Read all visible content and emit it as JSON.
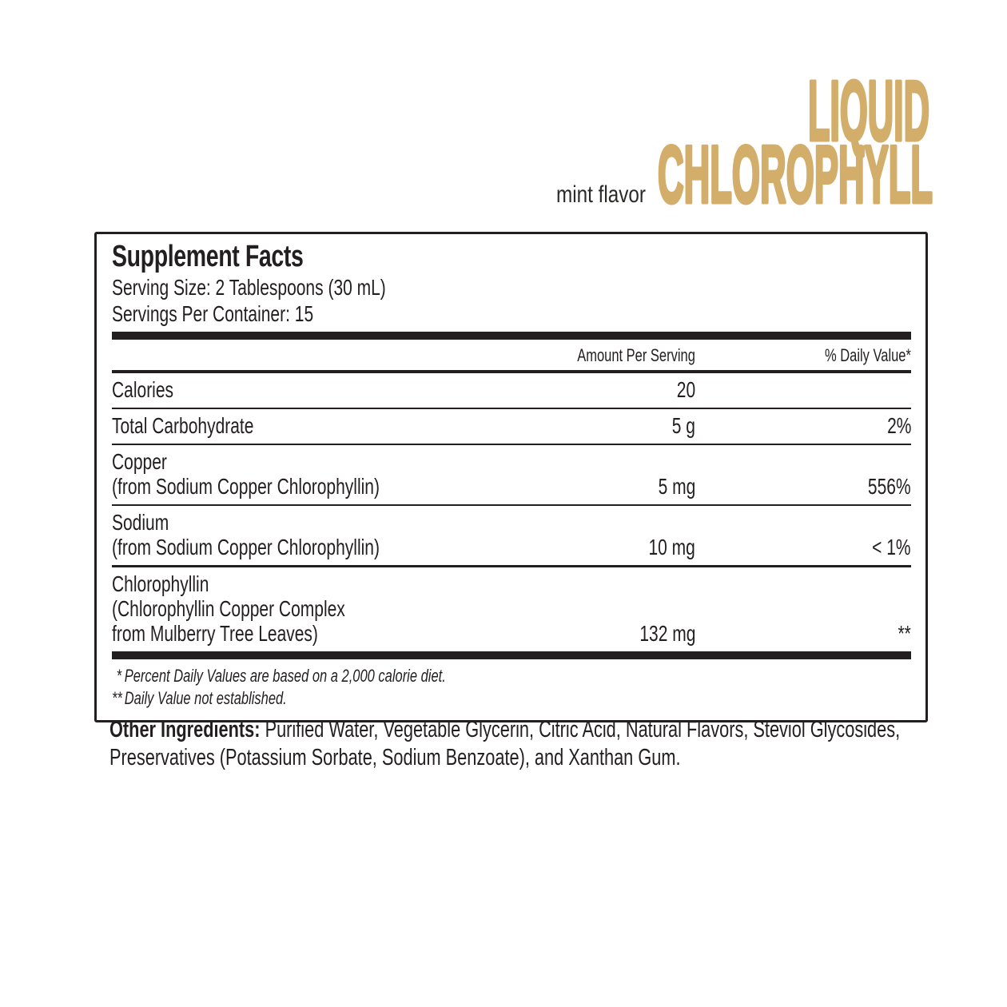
{
  "brand": {
    "title_line1": "LIQUID",
    "title_line2": "CHLOROPHYLL",
    "flavor": "mint flavor",
    "gold_color": "#d3ae6a"
  },
  "panel": {
    "title": "Supplement Facts",
    "serving_size": "Serving Size: 2 Tablespoons (30 mL)",
    "servings_per_container": "Servings Per Container: 15",
    "columns": {
      "amount": "Amount Per Serving",
      "daily_value": "% Daily Value*"
    },
    "rows": [
      {
        "name_lines": [
          "Calories"
        ],
        "amount": "20",
        "daily_value": ""
      },
      {
        "name_lines": [
          "Total Carbohydrate"
        ],
        "amount": "5 g",
        "daily_value": "2%"
      },
      {
        "name_lines": [
          "Copper",
          "(from Sodium Copper Chlorophyllin)"
        ],
        "amount": "5 mg",
        "daily_value": "556%"
      },
      {
        "name_lines": [
          "Sodium",
          "(from Sodium Copper Chlorophyllin)"
        ],
        "amount": "10 mg",
        "daily_value": "< 1%"
      },
      {
        "name_lines": [
          "Chlorophyllin",
          "(Chlorophyllin Copper Complex",
          "from Mulberry Tree Leaves)"
        ],
        "amount": "132 mg",
        "daily_value": "**"
      }
    ],
    "footnotes": [
      {
        "marker": "*",
        "text": "Percent Daily Values are based on a 2,000 calorie diet."
      },
      {
        "marker": "**",
        "text": "Daily Value not established."
      }
    ]
  },
  "other_ingredients": {
    "label": "Other Ingredients:",
    "line1_rest": "Purified Water, Vegetable Glycerin, Citric Acid, Natural Flavors, Steviol Glycosides,",
    "line2": "Preservatives (Potassium Sorbate, Sodium Benzoate), and Xanthan Gum."
  }
}
